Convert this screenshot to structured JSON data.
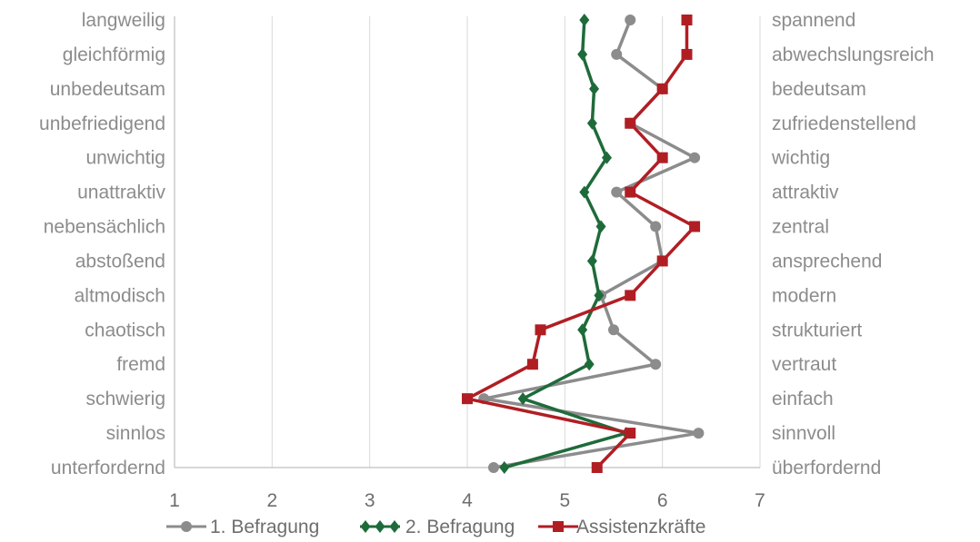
{
  "chart_data": {
    "type": "line",
    "xlim": [
      1,
      7
    ],
    "x_ticks": [
      "1",
      "2",
      "3",
      "4",
      "5",
      "6",
      "7"
    ],
    "grid": "vertical",
    "legend_position": "bottom",
    "left_labels": [
      "langweilig",
      "gleichförmig",
      "unbedeutsam",
      "unbefriedigend",
      "unwichtig",
      "unattraktiv",
      "nebensächlich",
      "abstoßend",
      "altmodisch",
      "chaotisch",
      "fremd",
      "schwierig",
      "sinnlos",
      "unterfordernd"
    ],
    "right_labels": [
      "spannend",
      "abwechslungsreich",
      "bedeutsam",
      "zufriedenstellend",
      "wichtig",
      "attraktiv",
      "zentral",
      "ansprechend",
      "modern",
      "strukturiert",
      "vertraut",
      "einfach",
      "sinnvoll",
      "überfordernd"
    ],
    "series": [
      {
        "name": "1. Befragung",
        "color": "#8c8c8c",
        "marker": "circle",
        "values": [
          5.67,
          5.53,
          6.0,
          5.67,
          6.33,
          5.53,
          5.93,
          6.0,
          5.37,
          5.5,
          5.93,
          4.17,
          6.37,
          4.27
        ]
      },
      {
        "name": "2. Befragung",
        "color": "#1e6b3a",
        "marker": "diamond",
        "values": [
          5.2,
          5.18,
          5.3,
          5.28,
          5.43,
          5.2,
          5.37,
          5.28,
          5.35,
          5.18,
          5.25,
          4.57,
          5.63,
          4.38
        ]
      },
      {
        "name": "Assistenzkräfte",
        "color": "#b01e23",
        "marker": "square",
        "values": [
          6.25,
          6.25,
          6.0,
          5.67,
          6.0,
          5.67,
          6.33,
          6.0,
          5.67,
          4.75,
          4.67,
          4.0,
          5.67,
          5.33
        ]
      }
    ]
  }
}
